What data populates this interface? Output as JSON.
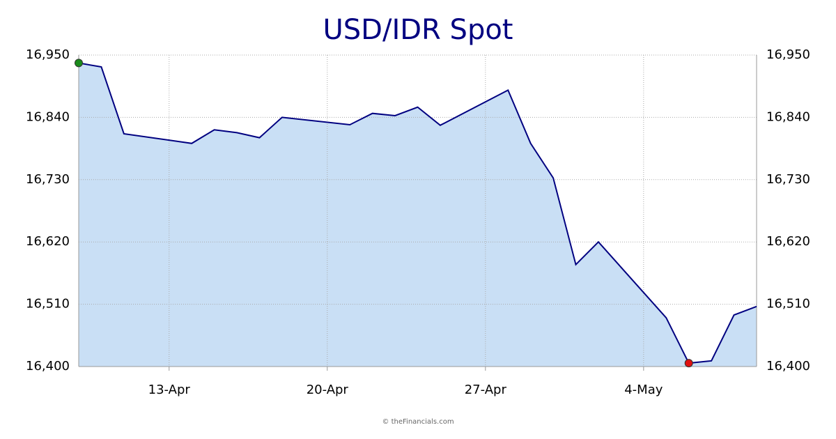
{
  "chart_data": {
    "type": "area",
    "title": "USD/IDR Spot",
    "footer": "© theFinancials.com",
    "x": [
      "9-Apr",
      "10-Apr",
      "11-Apr",
      "14-Apr",
      "15-Apr",
      "16-Apr",
      "17-Apr",
      "18-Apr",
      "21-Apr",
      "22-Apr",
      "23-Apr",
      "24-Apr",
      "25-Apr",
      "28-Apr",
      "29-Apr",
      "30-Apr",
      "1-May",
      "2-May",
      "5-May",
      "6-May",
      "7-May",
      "8-May",
      "9-May"
    ],
    "values": [
      16936,
      16929,
      16811,
      16794,
      16818,
      16813,
      16804,
      16840,
      16827,
      16847,
      16843,
      16858,
      16826,
      16888,
      16794,
      16733,
      16580,
      16620,
      16486,
      16406,
      16410,
      16491,
      16506
    ],
    "xlim": [
      "9-Apr",
      "9-May"
    ],
    "xticks": [
      "13-Apr",
      "20-Apr",
      "27-Apr",
      "4-May"
    ],
    "ylim": [
      16400,
      16950
    ],
    "yticks": [
      {
        "value": 16400,
        "label": "16,400"
      },
      {
        "value": 16510,
        "label": "16,510"
      },
      {
        "value": 16620,
        "label": "16,620"
      },
      {
        "value": 16730,
        "label": "16,730"
      },
      {
        "value": 16840,
        "label": "16,840"
      },
      {
        "value": 16950,
        "label": "16,950"
      }
    ],
    "grid": true,
    "line_color": "#000080",
    "fill_color": "#c9dff5",
    "max_marker_color": "#1a8a1a",
    "min_marker_color": "#e01010"
  }
}
